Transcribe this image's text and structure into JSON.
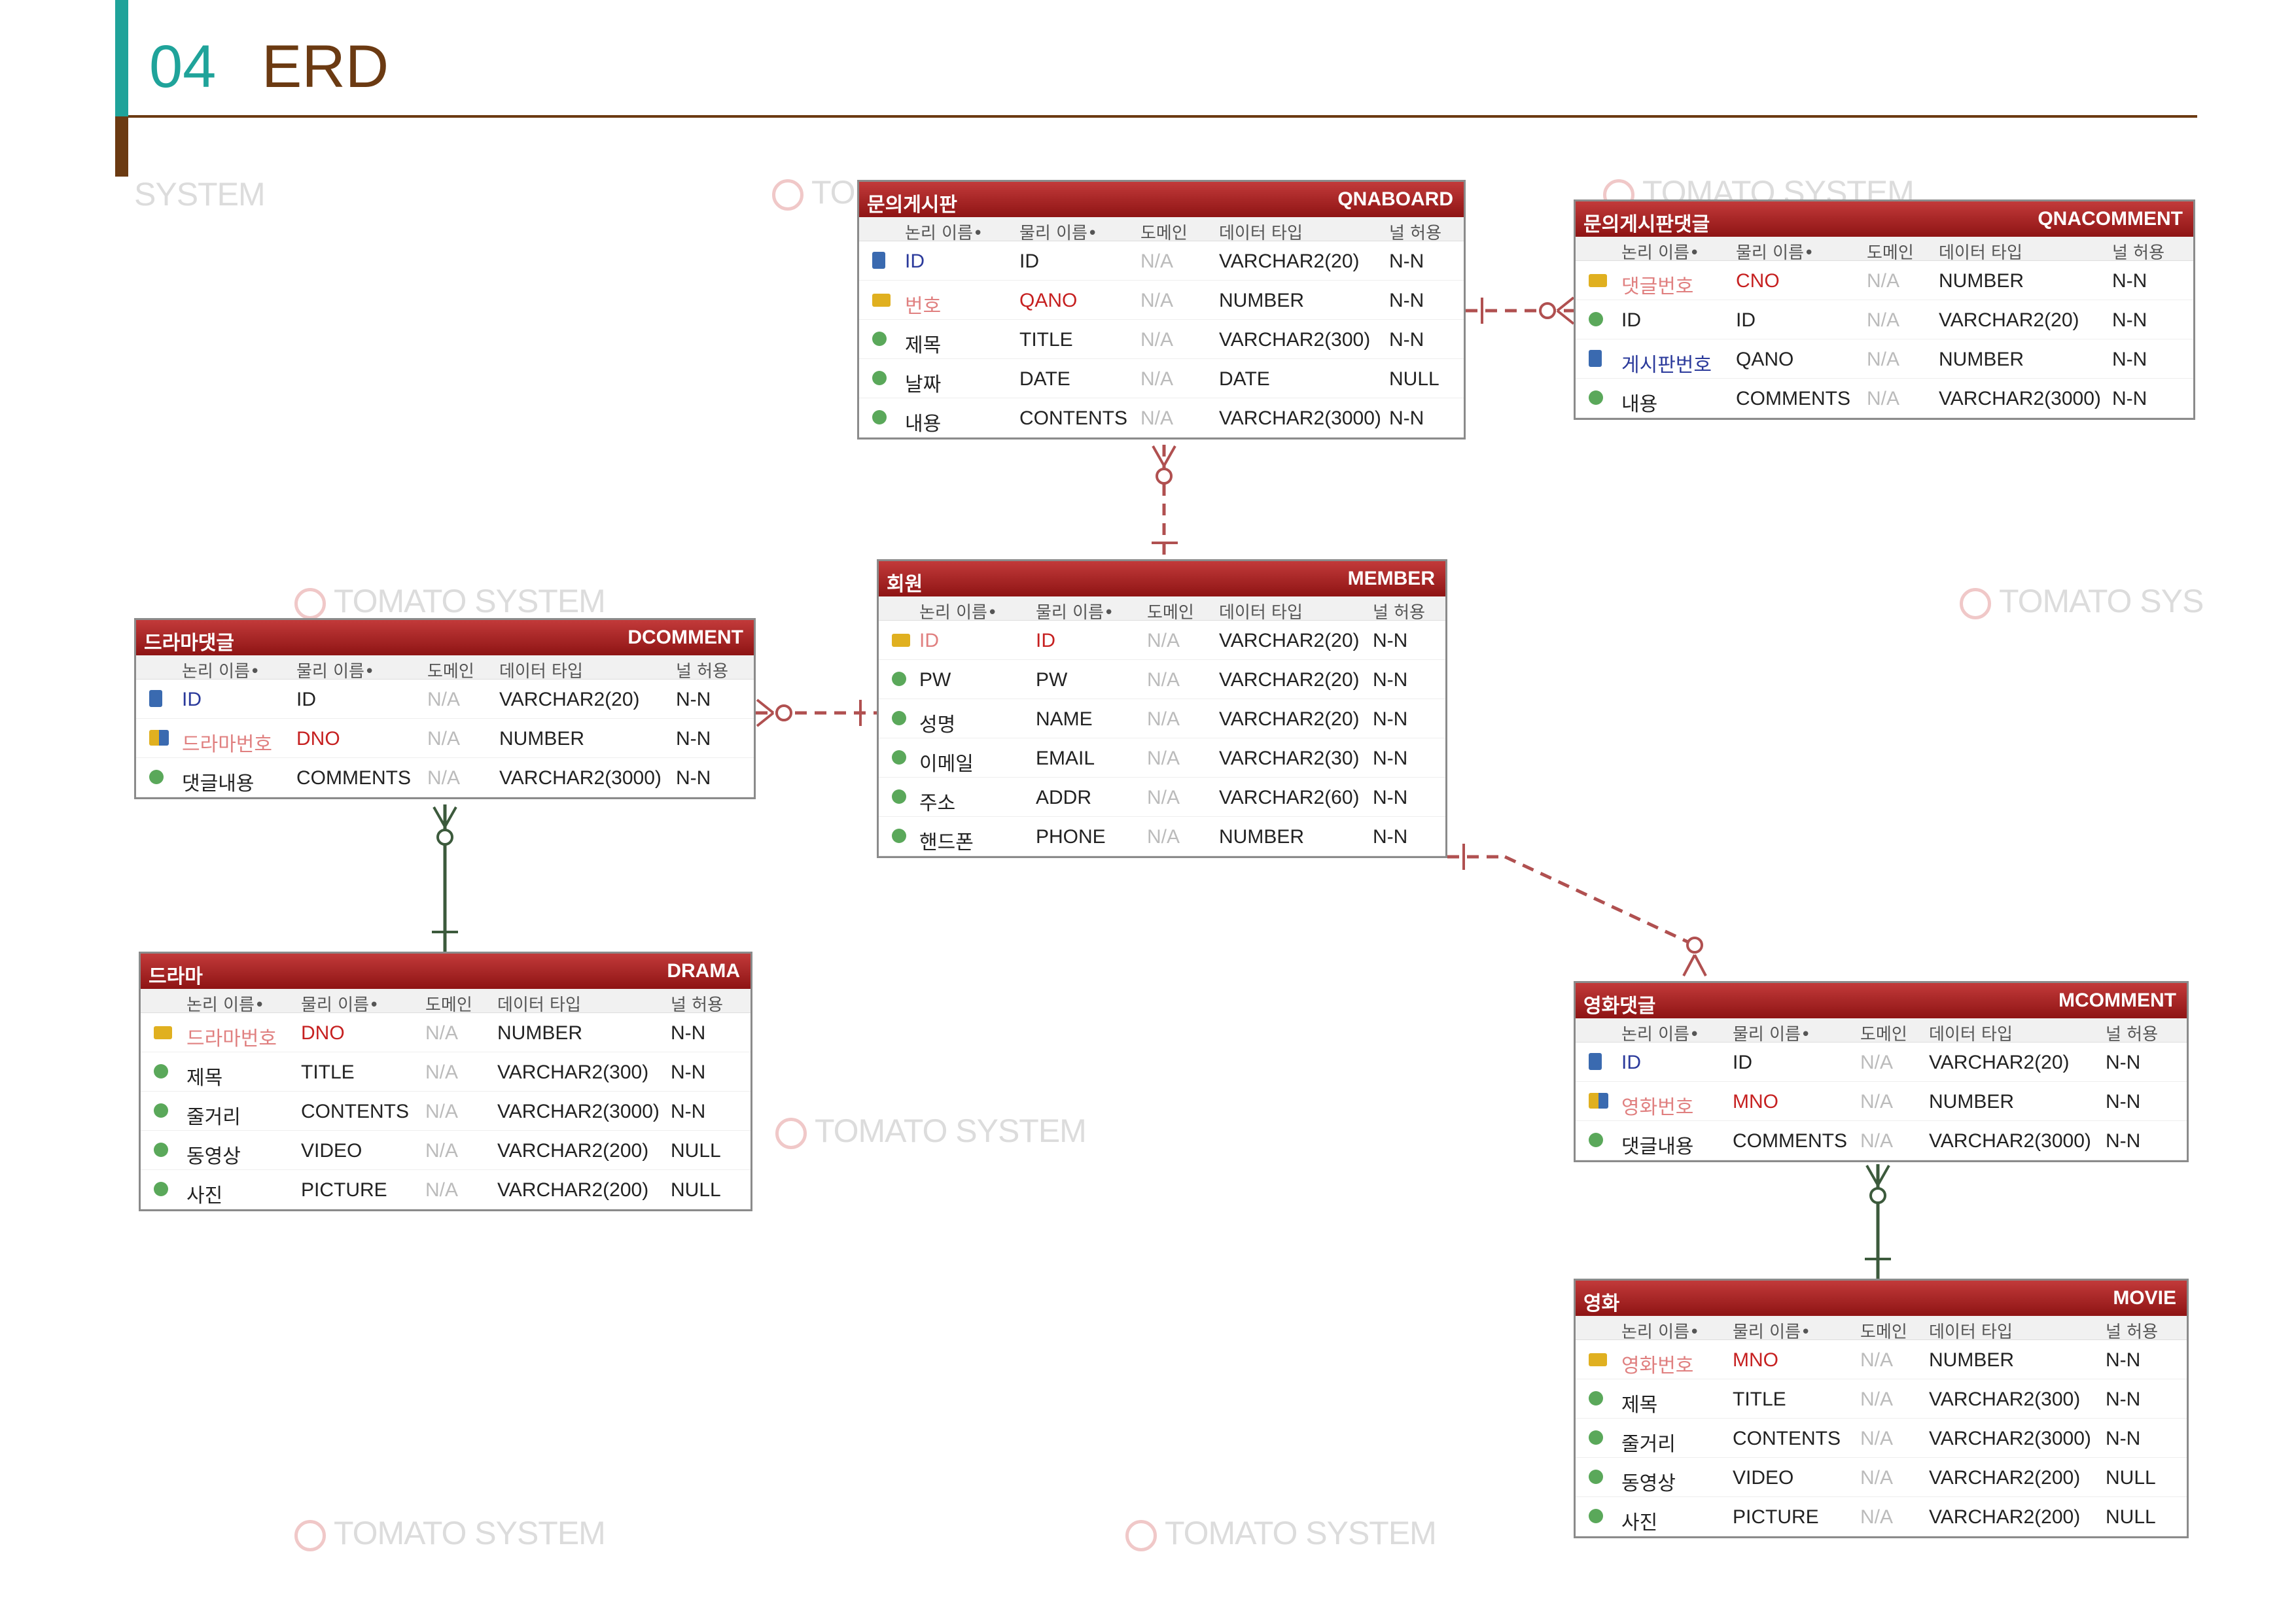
{
  "header": {
    "number": "04",
    "title": "ERD"
  },
  "watermarks": [
    "SYSTEM",
    "TOMATO SYSTEM",
    "TOMATO SYSTEM",
    "TOMATO SYSTEM",
    "TOMATO SYS",
    "TOMATO SYSTEM",
    "TOMATO SYSTEM",
    "TOMATO SYSTEM"
  ],
  "columns": {
    "logical": "논리 이름•",
    "physical": "물리 이름•",
    "domain": "도메인",
    "type": "데이터 타입",
    "nullable": "널 허용"
  },
  "entities": {
    "qnaboard": {
      "logical": "문의게시판",
      "physical": "QNABOARD",
      "rows": [
        {
          "logical": "ID",
          "physical": "ID",
          "domain": "N/A",
          "type": "VARCHAR2(20)",
          "null": "N-N",
          "kind": "fk"
        },
        {
          "logical": "번호",
          "physical": "QANO",
          "domain": "N/A",
          "type": "NUMBER",
          "null": "N-N",
          "kind": "pk"
        },
        {
          "logical": "제목",
          "physical": "TITLE",
          "domain": "N/A",
          "type": "VARCHAR2(300)",
          "null": "N-N",
          "kind": "attr"
        },
        {
          "logical": "날짜",
          "physical": "DATE",
          "domain": "N/A",
          "type": "DATE",
          "null": "NULL",
          "kind": "attr"
        },
        {
          "logical": "내용",
          "physical": "CONTENTS",
          "domain": "N/A",
          "type": "VARCHAR2(3000)",
          "null": "N-N",
          "kind": "attr"
        }
      ]
    },
    "qnacomment": {
      "logical": "문의게시판댓글",
      "physical": "QNACOMMENT",
      "rows": [
        {
          "logical": "댓글번호",
          "physical": "CNO",
          "domain": "N/A",
          "type": "NUMBER",
          "null": "N-N",
          "kind": "pk"
        },
        {
          "logical": "ID",
          "physical": "ID",
          "domain": "N/A",
          "type": "VARCHAR2(20)",
          "null": "N-N",
          "kind": "attr"
        },
        {
          "logical": "게시판번호",
          "physical": "QANO",
          "domain": "N/A",
          "type": "NUMBER",
          "null": "N-N",
          "kind": "fk"
        },
        {
          "logical": "내용",
          "physical": "COMMENTS",
          "domain": "N/A",
          "type": "VARCHAR2(3000)",
          "null": "N-N",
          "kind": "attr"
        }
      ]
    },
    "member": {
      "logical": "회원",
      "physical": "MEMBER",
      "rows": [
        {
          "logical": "ID",
          "physical": "ID",
          "domain": "N/A",
          "type": "VARCHAR2(20)",
          "null": "N-N",
          "kind": "pk"
        },
        {
          "logical": "PW",
          "physical": "PW",
          "domain": "N/A",
          "type": "VARCHAR2(20)",
          "null": "N-N",
          "kind": "attr"
        },
        {
          "logical": "성명",
          "physical": "NAME",
          "domain": "N/A",
          "type": "VARCHAR2(20)",
          "null": "N-N",
          "kind": "attr"
        },
        {
          "logical": "이메일",
          "physical": "EMAIL",
          "domain": "N/A",
          "type": "VARCHAR2(30)",
          "null": "N-N",
          "kind": "attr"
        },
        {
          "logical": "주소",
          "physical": "ADDR",
          "domain": "N/A",
          "type": "VARCHAR2(60)",
          "null": "N-N",
          "kind": "attr"
        },
        {
          "logical": "핸드폰",
          "physical": "PHONE",
          "domain": "N/A",
          "type": "NUMBER",
          "null": "N-N",
          "kind": "attr"
        }
      ]
    },
    "dcomment": {
      "logical": "드라마댓글",
      "physical": "DCOMMENT",
      "rows": [
        {
          "logical": "ID",
          "physical": "ID",
          "domain": "N/A",
          "type": "VARCHAR2(20)",
          "null": "N-N",
          "kind": "fk"
        },
        {
          "logical": "드라마번호",
          "physical": "DNO",
          "domain": "N/A",
          "type": "NUMBER",
          "null": "N-N",
          "kind": "pfk"
        },
        {
          "logical": "댓글내용",
          "physical": "COMMENTS",
          "domain": "N/A",
          "type": "VARCHAR2(3000)",
          "null": "N-N",
          "kind": "attr"
        }
      ]
    },
    "drama": {
      "logical": "드라마",
      "physical": "DRAMA",
      "rows": [
        {
          "logical": "드라마번호",
          "physical": "DNO",
          "domain": "N/A",
          "type": "NUMBER",
          "null": "N-N",
          "kind": "pk"
        },
        {
          "logical": "제목",
          "physical": "TITLE",
          "domain": "N/A",
          "type": "VARCHAR2(300)",
          "null": "N-N",
          "kind": "attr"
        },
        {
          "logical": "줄거리",
          "physical": "CONTENTS",
          "domain": "N/A",
          "type": "VARCHAR2(3000)",
          "null": "N-N",
          "kind": "attr"
        },
        {
          "logical": "동영상",
          "physical": "VIDEO",
          "domain": "N/A",
          "type": "VARCHAR2(200)",
          "null": "NULL",
          "kind": "attr"
        },
        {
          "logical": "사진",
          "physical": "PICTURE",
          "domain": "N/A",
          "type": "VARCHAR2(200)",
          "null": "NULL",
          "kind": "attr"
        }
      ]
    },
    "mcomment": {
      "logical": "영화댓글",
      "physical": "MCOMMENT",
      "rows": [
        {
          "logical": "ID",
          "physical": "ID",
          "domain": "N/A",
          "type": "VARCHAR2(20)",
          "null": "N-N",
          "kind": "fk"
        },
        {
          "logical": "영화번호",
          "physical": "MNO",
          "domain": "N/A",
          "type": "NUMBER",
          "null": "N-N",
          "kind": "pfk"
        },
        {
          "logical": "댓글내용",
          "physical": "COMMENTS",
          "domain": "N/A",
          "type": "VARCHAR2(3000)",
          "null": "N-N",
          "kind": "attr"
        }
      ]
    },
    "movie": {
      "logical": "영화",
      "physical": "MOVIE",
      "rows": [
        {
          "logical": "영화번호",
          "physical": "MNO",
          "domain": "N/A",
          "type": "NUMBER",
          "null": "N-N",
          "kind": "pk"
        },
        {
          "logical": "제목",
          "physical": "TITLE",
          "domain": "N/A",
          "type": "VARCHAR2(300)",
          "null": "N-N",
          "kind": "attr"
        },
        {
          "logical": "줄거리",
          "physical": "CONTENTS",
          "domain": "N/A",
          "type": "VARCHAR2(3000)",
          "null": "N-N",
          "kind": "attr"
        },
        {
          "logical": "동영상",
          "physical": "VIDEO",
          "domain": "N/A",
          "type": "VARCHAR2(200)",
          "null": "NULL",
          "kind": "attr"
        },
        {
          "logical": "사진",
          "physical": "PICTURE",
          "domain": "N/A",
          "type": "VARCHAR2(200)",
          "null": "NULL",
          "kind": "attr"
        }
      ]
    }
  },
  "colors": {
    "header_start": "#c23a3a",
    "header_end": "#8e1414",
    "relation": "#b05050",
    "identifying": "#3c5a3c",
    "accent_teal": "#1fa39a",
    "accent_brown": "#6b3a12"
  }
}
